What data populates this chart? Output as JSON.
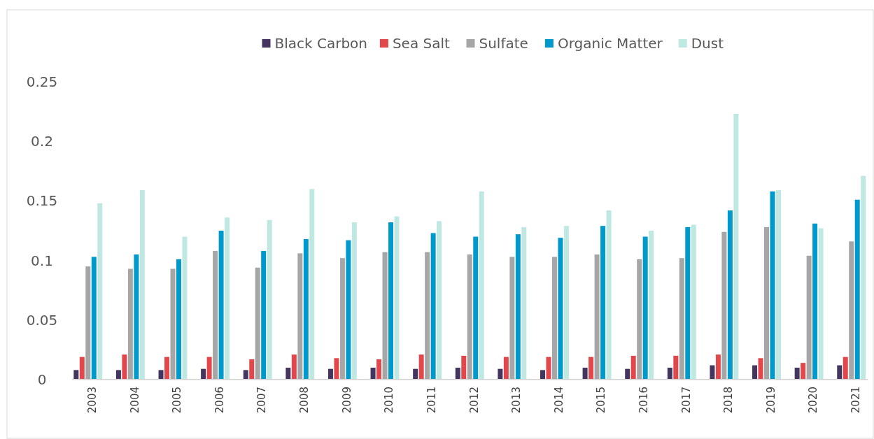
{
  "chart_data": {
    "type": "bar",
    "categories": [
      "2003",
      "2004",
      "2005",
      "2006",
      "2007",
      "2008",
      "2009",
      "2010",
      "2011",
      "2012",
      "2013",
      "2014",
      "2015",
      "2016",
      "2017",
      "2018",
      "2019",
      "2020",
      "2021"
    ],
    "series": [
      {
        "name": "Black Carbon",
        "color": "#44355f",
        "values": [
          0.008,
          0.008,
          0.008,
          0.009,
          0.008,
          0.01,
          0.009,
          0.01,
          0.009,
          0.01,
          0.009,
          0.008,
          0.01,
          0.009,
          0.01,
          0.012,
          0.012,
          0.01,
          0.012
        ]
      },
      {
        "name": "Sea Salt",
        "color": "#e2474b",
        "values": [
          0.019,
          0.021,
          0.019,
          0.019,
          0.017,
          0.021,
          0.018,
          0.017,
          0.021,
          0.02,
          0.019,
          0.019,
          0.019,
          0.02,
          0.02,
          0.021,
          0.018,
          0.014,
          0.019
        ]
      },
      {
        "name": "Sulfate",
        "color": "#a6a6a6",
        "values": [
          0.095,
          0.093,
          0.093,
          0.108,
          0.094,
          0.106,
          0.102,
          0.107,
          0.107,
          0.105,
          0.103,
          0.103,
          0.105,
          0.101,
          0.102,
          0.124,
          0.128,
          0.104,
          0.116
        ]
      },
      {
        "name": "Organic Matter",
        "color": "#0099cc",
        "values": [
          0.103,
          0.105,
          0.101,
          0.125,
          0.108,
          0.118,
          0.117,
          0.132,
          0.123,
          0.12,
          0.122,
          0.119,
          0.129,
          0.12,
          0.128,
          0.142,
          0.158,
          0.131,
          0.151
        ]
      },
      {
        "name": "Dust",
        "color": "#c0e8e2",
        "values": [
          0.148,
          0.159,
          0.12,
          0.136,
          0.134,
          0.16,
          0.132,
          0.137,
          0.133,
          0.158,
          0.128,
          0.129,
          0.142,
          0.125,
          0.13,
          0.223,
          0.159,
          0.127,
          0.171
        ]
      }
    ],
    "ylim": [
      0,
      0.25
    ],
    "yticks": [
      0,
      0.05,
      0.1,
      0.15,
      0.2,
      0.25
    ],
    "grid": false,
    "legend": "top"
  }
}
